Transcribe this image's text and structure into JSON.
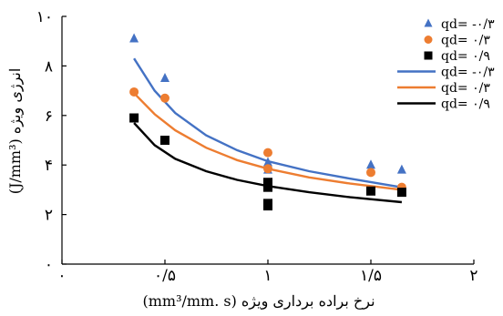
{
  "chart_data": {
    "type": "scatter",
    "xlabel": "نرخ براده برداری ویژه (mm³/mm. s)",
    "ylabel": "انرژی ویژه (J/mm³)",
    "xlim": [
      0,
      2
    ],
    "ylim": [
      0,
      10
    ],
    "x_ticks": [
      0,
      0.5,
      1,
      1.5,
      2
    ],
    "x_tick_labels": [
      "۰",
      "۰/۵",
      "۱",
      "۱/۵",
      "۲"
    ],
    "y_ticks": [
      0,
      2,
      4,
      6,
      8,
      10
    ],
    "y_tick_labels": [
      "۰",
      "۲",
      "۴",
      "۶",
      "۸",
      "۱۰"
    ],
    "grid": false,
    "legend_position": "top-right",
    "series": [
      {
        "name": "qd= -۰/۳",
        "kind": "points",
        "marker": "triangle",
        "color": "#4472C4",
        "points": [
          [
            0.35,
            9.1
          ],
          [
            0.5,
            7.5
          ],
          [
            1.0,
            4.1
          ],
          [
            1.0,
            3.8
          ],
          [
            1.5,
            4.0
          ],
          [
            1.65,
            3.8
          ]
        ]
      },
      {
        "name": "qd= ۰/۳",
        "kind": "points",
        "marker": "circle",
        "color": "#ED7D31",
        "points": [
          [
            0.35,
            6.95
          ],
          [
            0.5,
            6.7
          ],
          [
            1.0,
            4.5
          ],
          [
            1.0,
            3.85
          ],
          [
            1.5,
            3.7
          ],
          [
            1.65,
            3.1
          ]
        ]
      },
      {
        "name": "qd= ۰/۹",
        "kind": "points",
        "marker": "square",
        "color": "#000000",
        "points": [
          [
            0.35,
            5.9
          ],
          [
            0.5,
            5.0
          ],
          [
            1.0,
            3.3
          ],
          [
            1.0,
            3.1
          ],
          [
            1.0,
            2.45
          ],
          [
            1.0,
            2.35
          ],
          [
            1.5,
            2.95
          ],
          [
            1.65,
            2.9
          ]
        ]
      },
      {
        "name": "qd= -۰/۳",
        "kind": "line",
        "color": "#4472C4",
        "points": [
          [
            0.35,
            8.3
          ],
          [
            0.45,
            7.0
          ],
          [
            0.55,
            6.1
          ],
          [
            0.7,
            5.2
          ],
          [
            0.85,
            4.6
          ],
          [
            1.0,
            4.15
          ],
          [
            1.2,
            3.75
          ],
          [
            1.4,
            3.45
          ],
          [
            1.65,
            3.1
          ]
        ]
      },
      {
        "name": "qd= ۰/۳",
        "kind": "line",
        "color": "#ED7D31",
        "points": [
          [
            0.35,
            6.9
          ],
          [
            0.45,
            6.05
          ],
          [
            0.55,
            5.4
          ],
          [
            0.7,
            4.7
          ],
          [
            0.85,
            4.2
          ],
          [
            1.0,
            3.85
          ],
          [
            1.2,
            3.5
          ],
          [
            1.4,
            3.25
          ],
          [
            1.65,
            3.0
          ]
        ]
      },
      {
        "name": "qd= ۰/۹",
        "kind": "line",
        "color": "#000000",
        "points": [
          [
            0.35,
            5.7
          ],
          [
            0.45,
            4.8
          ],
          [
            0.55,
            4.25
          ],
          [
            0.7,
            3.75
          ],
          [
            0.85,
            3.4
          ],
          [
            1.0,
            3.15
          ],
          [
            1.2,
            2.9
          ],
          [
            1.4,
            2.7
          ],
          [
            1.65,
            2.5
          ]
        ]
      }
    ]
  }
}
